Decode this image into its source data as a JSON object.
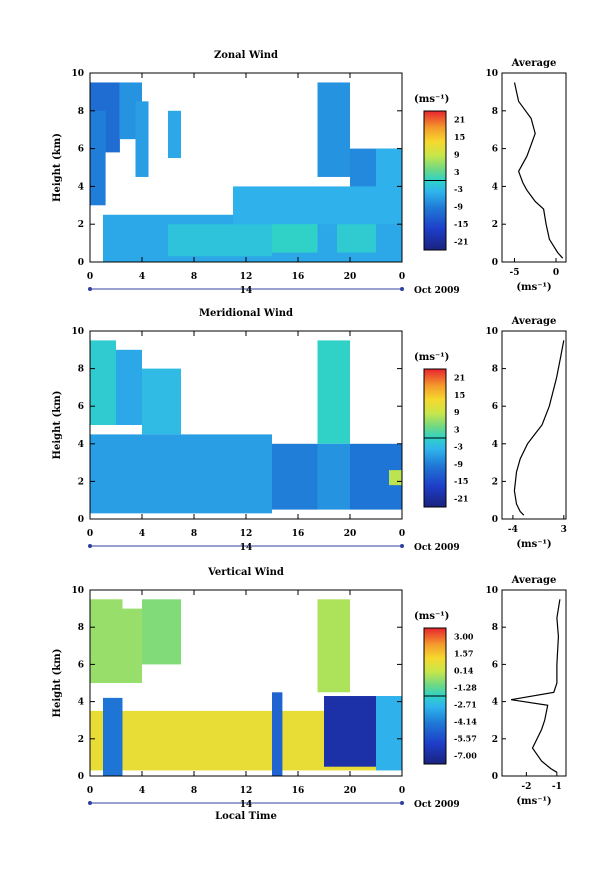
{
  "chart_data": [
    {
      "type": "heatmap",
      "title": "Zonal Wind",
      "ylabel": "Height (km)",
      "xlabel": "",
      "x_ticks": [
        "0",
        "4",
        "8",
        "12",
        "16",
        "20",
        "0"
      ],
      "y_ticks": [
        "0",
        "2",
        "4",
        "6",
        "8",
        "10"
      ],
      "xlim": [
        0,
        24
      ],
      "ylim": [
        0,
        10
      ],
      "date_marker": "14",
      "date_label": "Oct 2009",
      "colorbar": {
        "unit": "(ms⁻¹)",
        "ticks": [
          "21",
          "15",
          "9",
          "3",
          "-3",
          "-9",
          "-15",
          "-21"
        ],
        "range": [
          -24,
          24
        ]
      },
      "regions": [
        {
          "x": [
            0,
            2.3
          ],
          "y": [
            5.8,
            9.5
          ],
          "v": -11
        },
        {
          "x": [
            0,
            1.2
          ],
          "y": [
            3.0,
            8.0
          ],
          "v": -9
        },
        {
          "x": [
            2.3,
            4
          ],
          "y": [
            6.5,
            9.5
          ],
          "v": -7
        },
        {
          "x": [
            3.5,
            4.5
          ],
          "y": [
            4.5,
            8.5
          ],
          "v": -6
        },
        {
          "x": [
            6,
            7
          ],
          "y": [
            5.5,
            8.0
          ],
          "v": -5
        },
        {
          "x": [
            1,
            24
          ],
          "y": [
            0,
            2.5
          ],
          "v": -5
        },
        {
          "x": [
            6,
            14
          ],
          "y": [
            0.3,
            2.0
          ],
          "v": -2
        },
        {
          "x": [
            14,
            17.5
          ],
          "y": [
            0.5,
            2.2
          ],
          "v": 0
        },
        {
          "x": [
            17.5,
            20
          ],
          "y": [
            4.5,
            9.5
          ],
          "v": -7
        },
        {
          "x": [
            20,
            24
          ],
          "y": [
            2,
            6
          ],
          "v": -8
        },
        {
          "x": [
            19,
            22
          ],
          "y": [
            0.5,
            3.0
          ],
          "v": -1
        },
        {
          "x": [
            11,
            24
          ],
          "y": [
            2,
            4
          ],
          "v": -4
        },
        {
          "x": [
            22,
            24
          ],
          "y": [
            4,
            6
          ],
          "v": -4
        }
      ],
      "average_profile": {
        "title": "Average",
        "xlabel": "(ms⁻¹)",
        "x_ticks": [
          "-5",
          "0"
        ],
        "xlim": [
          -6.5,
          1.2
        ],
        "ylim": [
          0,
          10
        ],
        "x": [
          -5,
          -4.5,
          -3,
          -2.5,
          -3,
          -3.5,
          -4.5,
          -4,
          -3.5,
          -3,
          -2.5,
          -1.5,
          -1.2,
          -0.8,
          0.2,
          0.8
        ],
        "y": [
          9.5,
          8.5,
          7.6,
          6.8,
          6.2,
          5.6,
          4.8,
          4.2,
          3.8,
          3.5,
          3.2,
          2.8,
          2.0,
          1.2,
          0.5,
          0.2
        ]
      }
    },
    {
      "type": "heatmap",
      "title": "Meridional Wind",
      "ylabel": "Height (km)",
      "xlabel": "",
      "x_ticks": [
        "0",
        "4",
        "8",
        "12",
        "16",
        "20",
        "0"
      ],
      "y_ticks": [
        "0",
        "2",
        "4",
        "6",
        "8",
        "10"
      ],
      "xlim": [
        0,
        24
      ],
      "ylim": [
        0,
        10
      ],
      "date_marker": "14",
      "date_label": "Oct 2009",
      "colorbar": {
        "unit": "(ms⁻¹)",
        "ticks": [
          "21",
          "15",
          "9",
          "3",
          "-3",
          "-9",
          "-15",
          "-21"
        ],
        "range": [
          -24,
          24
        ]
      },
      "regions": [
        {
          "x": [
            0,
            2
          ],
          "y": [
            5,
            9.5
          ],
          "v": -1
        },
        {
          "x": [
            2,
            4
          ],
          "y": [
            5,
            9
          ],
          "v": -5
        },
        {
          "x": [
            4,
            7
          ],
          "y": [
            4.5,
            8
          ],
          "v": -3
        },
        {
          "x": [
            0,
            14
          ],
          "y": [
            0.3,
            4.5
          ],
          "v": -6
        },
        {
          "x": [
            14,
            17.5
          ],
          "y": [
            0.5,
            4
          ],
          "v": -9
        },
        {
          "x": [
            17.5,
            20
          ],
          "y": [
            4,
            9.5
          ],
          "v": 0
        },
        {
          "x": [
            20,
            24
          ],
          "y": [
            0.5,
            4
          ],
          "v": -10
        },
        {
          "x": [
            17.5,
            20
          ],
          "y": [
            0.5,
            4
          ],
          "v": -7
        },
        {
          "x": [
            23,
            24
          ],
          "y": [
            1.8,
            2.6
          ],
          "v": 8
        }
      ],
      "average_profile": {
        "title": "Average",
        "xlabel": "(ms⁻¹)",
        "x_ticks": [
          "-4",
          "3"
        ],
        "xlim": [
          -5.5,
          3.3
        ],
        "ylim": [
          0,
          10
        ],
        "x": [
          3,
          2.5,
          2,
          1,
          0,
          -1,
          -2,
          -3,
          -3.5,
          -3.8,
          -3.5,
          -3,
          -2.5
        ],
        "y": [
          9.5,
          8.5,
          7.5,
          6.0,
          5.0,
          4.5,
          4.0,
          3.2,
          2.5,
          1.5,
          0.8,
          0.4,
          0.2
        ]
      }
    },
    {
      "type": "heatmap",
      "title": "Vertical Wind",
      "ylabel": "Height (km)",
      "xlabel": "Local Time",
      "x_ticks": [
        "0",
        "4",
        "8",
        "12",
        "16",
        "20",
        "0"
      ],
      "y_ticks": [
        "0",
        "2",
        "4",
        "6",
        "8",
        "10"
      ],
      "xlim": [
        0,
        24
      ],
      "ylim": [
        0,
        10
      ],
      "date_marker": "14",
      "date_label": "Oct 2009",
      "colorbar": {
        "unit": "(ms⁻¹)",
        "ticks": [
          "3.00",
          "1.57",
          "0.14",
          "-1.28",
          "-2.71",
          "-4.14",
          "-5.57",
          "-7.00"
        ],
        "range": [
          -8,
          4
        ]
      },
      "regions": [
        {
          "x": [
            0,
            2.5
          ],
          "y": [
            5,
            9.5
          ],
          "v": -0.5
        },
        {
          "x": [
            2.5,
            4
          ],
          "y": [
            5,
            9
          ],
          "v": -0.5
        },
        {
          "x": [
            4,
            7
          ],
          "y": [
            6,
            9.5
          ],
          "v": -0.8
        },
        {
          "x": [
            0,
            24
          ],
          "y": [
            0.3,
            3.5
          ],
          "v": 1.0
        },
        {
          "x": [
            1,
            2.5
          ],
          "y": [
            0,
            4.2
          ],
          "v": -4.5
        },
        {
          "x": [
            14,
            14.8
          ],
          "y": [
            0,
            4.5
          ],
          "v": -5
        },
        {
          "x": [
            17.5,
            20
          ],
          "y": [
            4.5,
            9.5
          ],
          "v": -0.2
        },
        {
          "x": [
            18,
            22
          ],
          "y": [
            0.5,
            4.3
          ],
          "v": -7
        },
        {
          "x": [
            22,
            24
          ],
          "y": [
            0.3,
            4.3
          ],
          "v": -3
        }
      ],
      "average_profile": {
        "title": "Average",
        "xlabel": "(ms⁻¹)",
        "x_ticks": [
          "-2",
          "-1"
        ],
        "xlim": [
          -2.8,
          -0.7
        ],
        "ylim": [
          0,
          10
        ],
        "x": [
          -0.9,
          -1.0,
          -0.95,
          -1.0,
          -1.0,
          -1.1,
          -2.5,
          -1.3,
          -1.4,
          -1.5,
          -1.8,
          -1.5,
          -1.2,
          -1.0
        ],
        "y": [
          9.5,
          8.5,
          7.5,
          6.0,
          5.0,
          4.5,
          4.1,
          3.8,
          3.0,
          2.5,
          1.5,
          0.8,
          0.4,
          0.2
        ]
      }
    }
  ]
}
